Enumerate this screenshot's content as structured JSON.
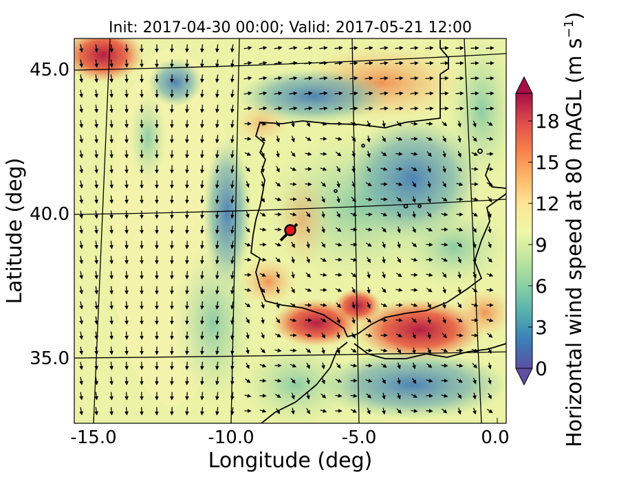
{
  "title": "Init: 2017-04-30 00:00; Valid: 2017-05-21 12:00",
  "chart_data": {
    "type": "heatmap",
    "title": "Init: 2017-04-30 00:00; Valid: 2017-05-21 12:00",
    "xlabel": "Longitude (deg)",
    "ylabel": "Latitude (deg)",
    "xlim": [
      -16.0,
      0.3
    ],
    "ylim": [
      32.5,
      46.3
    ],
    "x_ticks": [
      "-15.0",
      "-10.0",
      "-5.0",
      "0.0"
    ],
    "y_ticks": [
      "45.0",
      "40.0",
      "35.0"
    ],
    "colorbar": {
      "label_main": "Horizontal wind speed at 80 mAGL (m s",
      "label_exp": "−1",
      "label_close": ")",
      "min": 0,
      "max": 20,
      "extend": "both",
      "ticks": [
        "0",
        "3",
        "6",
        "9",
        "12",
        "15",
        "18"
      ],
      "colormap": "Spectral_r"
    },
    "marker": {
      "lon": -7.6,
      "lat": 39.3,
      "color": "#e8161b"
    },
    "wind_field": "vector arrows (black) over filled contours of 80 m wind speed"
  }
}
